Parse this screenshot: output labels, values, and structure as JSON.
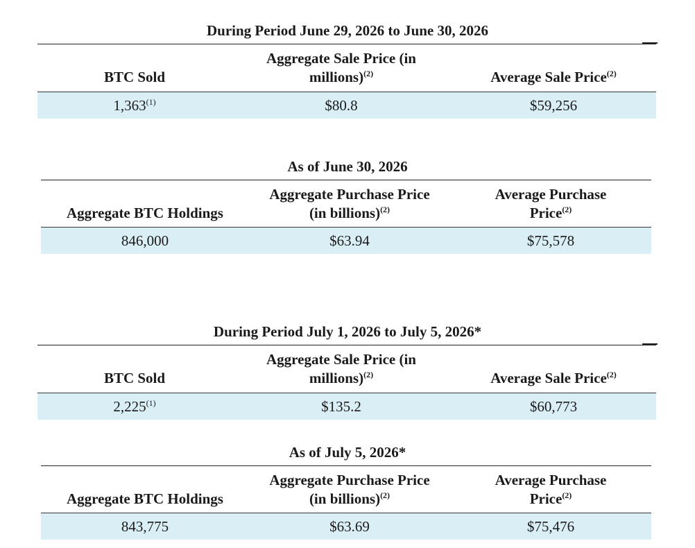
{
  "sales_period_1": {
    "title": "During Period June 29, 2026 to June 30, 2026",
    "headers": {
      "col1": "BTC Sold",
      "col2_line1": "Aggregate Sale Price (in",
      "col2_line2": "millions)",
      "col2_note": "(2)",
      "col3": "Average Sale Price",
      "col3_note": "(2)"
    },
    "row": {
      "btc_sold": "1,363",
      "btc_sold_note": "(1)",
      "aggregate_sale_price": "$80.8",
      "average_sale_price": "$59,256"
    }
  },
  "holdings_1": {
    "title": "As of June 30, 2026",
    "headers": {
      "col1": "Aggregate BTC Holdings",
      "col2_line1": "Aggregate Purchase Price",
      "col2_line2": "(in billions)",
      "col2_note": "(2)",
      "col3_line1": "Average Purchase",
      "col3_line2": "Price",
      "col3_note": "(2)"
    },
    "row": {
      "holdings": "846,000",
      "aggregate_purchase_price": "$63.94",
      "average_purchase_price": "$75,578"
    }
  },
  "sales_period_2": {
    "title": "During Period July 1, 2026 to July 5, 2026*",
    "headers": {
      "col1": "BTC Sold",
      "col2_line1": "Aggregate Sale Price (in",
      "col2_line2": "millions)",
      "col2_note": "(2)",
      "col3": "Average Sale Price",
      "col3_note": "(2)"
    },
    "row": {
      "btc_sold": "2,225",
      "btc_sold_note": "(1)",
      "aggregate_sale_price": "$135.2",
      "average_sale_price": "$60,773"
    }
  },
  "holdings_2": {
    "title": "As of July 5, 2026*",
    "headers": {
      "col1": "Aggregate BTC Holdings",
      "col2_line1": "Aggregate Purchase Price",
      "col2_line2": "(in billions)",
      "col2_note": "(2)",
      "col3_line1": "Average Purchase",
      "col3_line2": "Price",
      "col3_note": "(2)"
    },
    "row": {
      "holdings": "843,775",
      "aggregate_purchase_price": "$63.69",
      "average_purchase_price": "$75,476"
    }
  }
}
